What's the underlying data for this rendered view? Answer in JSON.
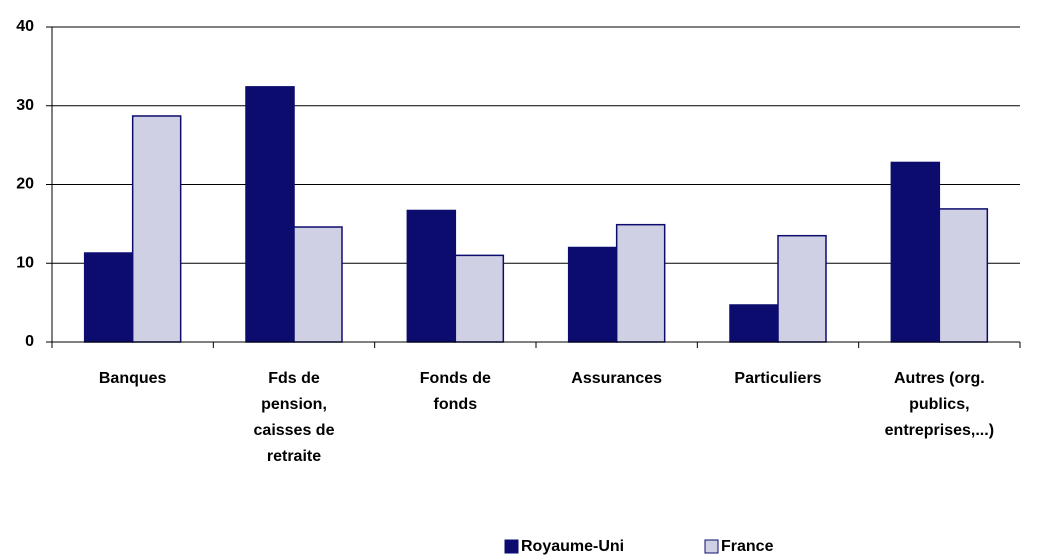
{
  "chart_data": {
    "type": "bar",
    "categories": [
      "Banques",
      "Fds de pension, caisses de retraite",
      "Fonds de fonds",
      "Assurances",
      "Particuliers",
      "Autres (org. publics, entreprises,...)"
    ],
    "series": [
      {
        "name": "Royaume-Uni",
        "color": "#0c0c6e",
        "values": [
          11.3,
          32.4,
          16.7,
          12,
          4.7,
          22.8
        ]
      },
      {
        "name": "France",
        "color": "#d0d0e4",
        "values": [
          28.7,
          14.6,
          11,
          14.9,
          13.5,
          16.9
        ]
      }
    ],
    "ylim": [
      0,
      40
    ],
    "yticks": [
      0,
      10,
      20,
      30,
      40
    ],
    "grid": true,
    "legend": "bottom"
  }
}
